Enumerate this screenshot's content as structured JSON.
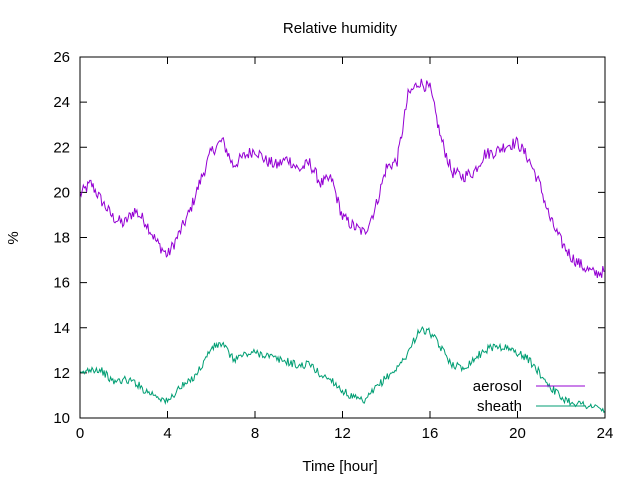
{
  "chart_data": {
    "type": "line",
    "title": "Relative humidity",
    "xlabel": "Time [hour]",
    "ylabel": "%",
    "xlim": [
      0,
      24
    ],
    "ylim": [
      10,
      26
    ],
    "xticks": [
      0,
      4,
      8,
      12,
      16,
      20,
      24
    ],
    "yticks": [
      10,
      12,
      14,
      16,
      18,
      20,
      22,
      24,
      26
    ],
    "legend_position": "bottom-right",
    "grid": false,
    "series": [
      {
        "name": "aerosol",
        "color": "#9400d3",
        "x": [
          0,
          0.5,
          1,
          1.5,
          2,
          2.5,
          3,
          3.5,
          4,
          4.5,
          5,
          5.5,
          6,
          6.5,
          7,
          7.5,
          8,
          8.5,
          9,
          9.5,
          10,
          10.5,
          11,
          11.5,
          12,
          12.5,
          13,
          13.5,
          14,
          14.5,
          15,
          15.5,
          16,
          16.5,
          17,
          17.5,
          18,
          18.5,
          19,
          19.5,
          20,
          20.5,
          21,
          21.5,
          22,
          22.5,
          23,
          23.5,
          24
        ],
        "values": [
          19.9,
          20.4,
          19.6,
          18.9,
          18.6,
          19.2,
          18.7,
          17.8,
          17.2,
          18.1,
          19.1,
          20.5,
          21.8,
          22.3,
          21.2,
          21.6,
          21.9,
          21.4,
          21.2,
          21.5,
          21.0,
          21.3,
          20.4,
          20.6,
          18.9,
          18.5,
          18.2,
          19.3,
          21.1,
          21.4,
          24.3,
          24.9,
          24.6,
          22.4,
          20.9,
          20.7,
          20.9,
          21.7,
          21.8,
          22.1,
          22.2,
          21.5,
          20.4,
          18.8,
          17.8,
          17.1,
          16.7,
          16.4,
          16.5
        ]
      },
      {
        "name": "sheath",
        "color": "#009e73",
        "x": [
          0,
          0.5,
          1,
          1.5,
          2,
          2.5,
          3,
          3.5,
          4,
          4.5,
          5,
          5.5,
          6,
          6.5,
          7,
          7.5,
          8,
          8.5,
          9,
          9.5,
          10,
          10.5,
          11,
          11.5,
          12,
          12.5,
          13,
          13.5,
          14,
          14.5,
          15,
          15.5,
          16,
          16.5,
          17,
          17.5,
          18,
          18.5,
          19,
          19.5,
          20,
          20.5,
          21,
          21.5,
          22,
          22.5,
          23,
          23.5,
          24
        ],
        "values": [
          11.9,
          12.2,
          12.1,
          11.6,
          11.7,
          11.6,
          11.2,
          11.0,
          10.7,
          11.3,
          11.6,
          12.2,
          13.1,
          13.3,
          12.6,
          12.8,
          12.9,
          12.8,
          12.6,
          12.5,
          12.3,
          12.4,
          11.9,
          11.7,
          11.2,
          10.9,
          10.7,
          11.3,
          11.8,
          12.2,
          12.9,
          13.9,
          13.8,
          13.1,
          12.4,
          12.2,
          12.6,
          13.0,
          13.2,
          13.1,
          12.9,
          12.6,
          12.0,
          11.4,
          10.9,
          10.7,
          10.6,
          10.5,
          10.3
        ]
      }
    ]
  }
}
